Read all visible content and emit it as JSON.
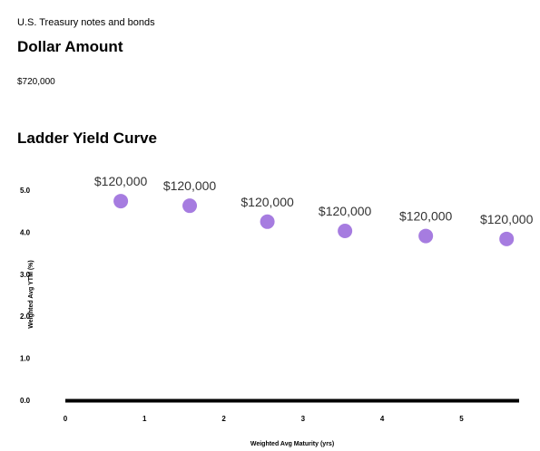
{
  "header": {
    "subtitle": "U.S. Treasury notes and bonds",
    "amount_label": "Dollar Amount",
    "amount_value": "$720,000"
  },
  "chart_data": {
    "type": "scatter",
    "title": "Ladder Yield Curve",
    "xlabel": "Weighted Avg Maturity (yrs)",
    "ylabel": "Weighted Avg YTM (%)",
    "xlim": [
      0,
      5.9
    ],
    "ylim": [
      0,
      5.0
    ],
    "x_ticks": [
      "0",
      "1",
      "2",
      "3",
      "4",
      "5"
    ],
    "y_ticks": [
      "0.0",
      "1.0",
      "2.0",
      "3.0",
      "4.0",
      "5.0"
    ],
    "x": [
      0.7,
      1.57,
      2.55,
      3.53,
      4.55,
      5.57
    ],
    "y": [
      4.74,
      4.63,
      4.25,
      4.03,
      3.91,
      3.84
    ],
    "point_labels": [
      "$120,000",
      "$120,000",
      "$120,000",
      "$120,000",
      "$120,000",
      "$120,000"
    ],
    "grid": false,
    "point_color": "#a67ce0"
  }
}
